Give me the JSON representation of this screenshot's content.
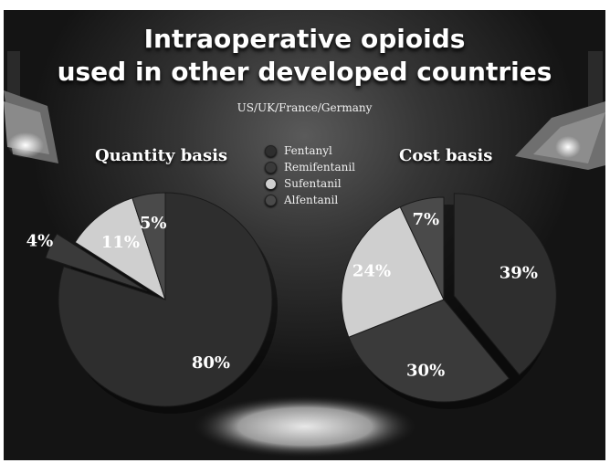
{
  "title": "Intraoperative opioids\nused in other developed countries",
  "subtitle": "US/UK/France/Germany",
  "legend": [
    {
      "label": "Fentanyl",
      "color": "#2e2e2e"
    },
    {
      "label": "Remifentanil",
      "color": "#3a3a3a"
    },
    {
      "label": "Sufentanil",
      "color": "#cfcfcf"
    },
    {
      "label": "Alfentanil",
      "color": "#4a4a4a"
    }
  ],
  "chart_data": [
    {
      "type": "pie",
      "title": "Quantity basis",
      "categories": [
        "Fentanyl",
        "Remifentanil",
        "Sufentanil",
        "Alfentanil"
      ],
      "values": [
        80,
        4,
        11,
        5
      ],
      "labels": [
        "80%",
        "4%",
        "11%",
        "5%"
      ],
      "exploded": "Remifentanil"
    },
    {
      "type": "pie",
      "title": "Cost basis",
      "categories": [
        "Fentanyl",
        "Remifentanil",
        "Sufentanil",
        "Alfentanil"
      ],
      "values": [
        39,
        30,
        24,
        7
      ],
      "labels": [
        "39%",
        "30%",
        "24%",
        "7%"
      ],
      "exploded": "Fentanyl"
    }
  ]
}
